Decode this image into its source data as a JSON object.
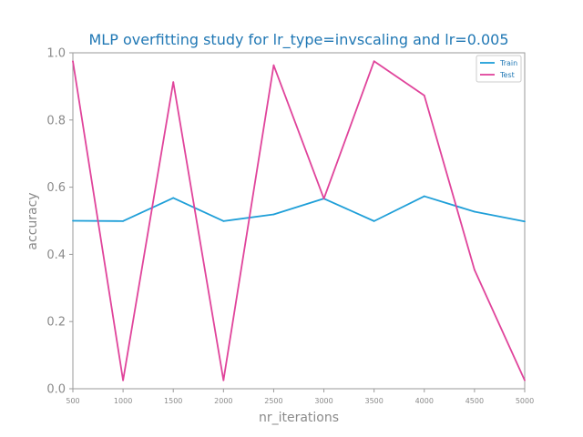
{
  "chart_data": {
    "type": "line",
    "title": "MLP overfitting study for lr_type=invscaling and lr=0.005",
    "xlabel": "nr_iterations",
    "ylabel": "accuracy",
    "x": [
      500,
      1000,
      1500,
      2000,
      2500,
      3000,
      3500,
      4000,
      4500,
      5000
    ],
    "x_tick_labels": [
      "500",
      "1000",
      "1500",
      "2000",
      "2500",
      "3000",
      "3500",
      "4000",
      "4500",
      "5000"
    ],
    "y_tick_labels": [
      "0.0",
      "0.2",
      "0.4",
      "0.6",
      "0.8",
      "1.0"
    ],
    "xlim": [
      500,
      5000
    ],
    "ylim": [
      0.0,
      1.0
    ],
    "grid": false,
    "legend_position": "top-right",
    "series": [
      {
        "name": "Train",
        "color": "#1f9fd8",
        "values": [
          0.5,
          0.499,
          0.568,
          0.499,
          0.519,
          0.566,
          0.499,
          0.573,
          0.527,
          0.498
        ]
      },
      {
        "name": "Test",
        "color": "#e0449b",
        "values": [
          0.975,
          0.025,
          0.913,
          0.025,
          0.963,
          0.566,
          0.975,
          0.873,
          0.354,
          0.025
        ]
      }
    ],
    "colors": {
      "title": "#1f77b4",
      "axis": "#8a8a8a",
      "legend_text": "#1f77b4"
    }
  }
}
